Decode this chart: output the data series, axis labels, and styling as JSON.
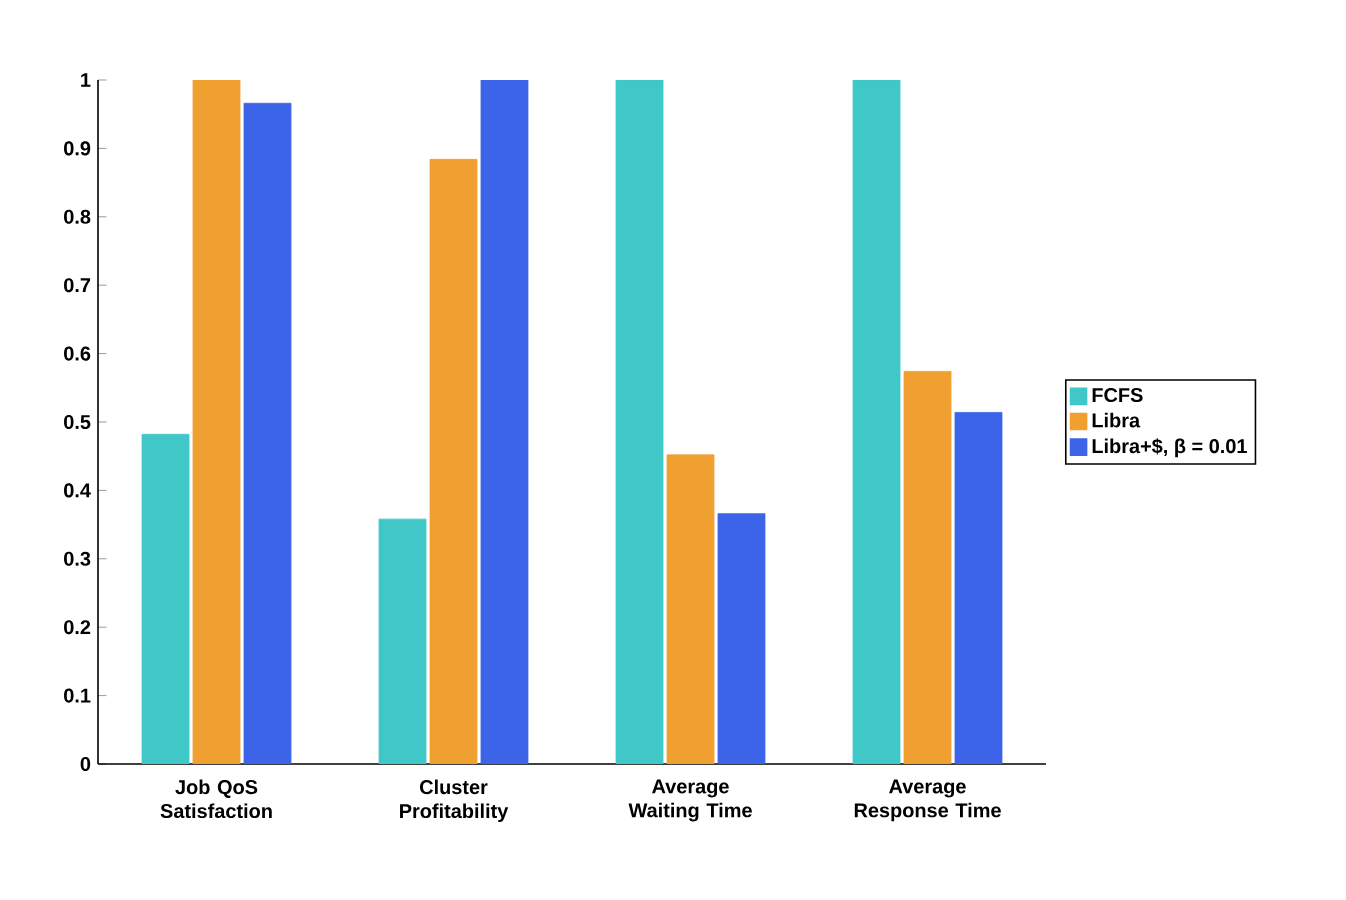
{
  "chart_data": {
    "type": "bar",
    "categories": [
      "Job QoS Satisfaction",
      "Cluster Profitability",
      "Average Waiting Time",
      "Average Response Time"
    ],
    "series": [
      {
        "name": "FCFS",
        "color": "#40c8c8",
        "values": [
          0.482,
          0.358,
          1.0,
          1.0
        ]
      },
      {
        "name": "Libra",
        "color": "#f0a030",
        "values": [
          1.0,
          0.884,
          0.452,
          0.574
        ]
      },
      {
        "name": "Libra+$, β = 0.01",
        "color": "#3c64e8",
        "values": [
          0.966,
          1.0,
          0.366,
          0.514
        ]
      }
    ],
    "ylim": [
      0,
      1
    ],
    "yticks": [
      0,
      0.1,
      0.2,
      0.3,
      0.4,
      0.5,
      0.6,
      0.7,
      0.8,
      0.9,
      1
    ],
    "legend": "right",
    "grid": false
  }
}
